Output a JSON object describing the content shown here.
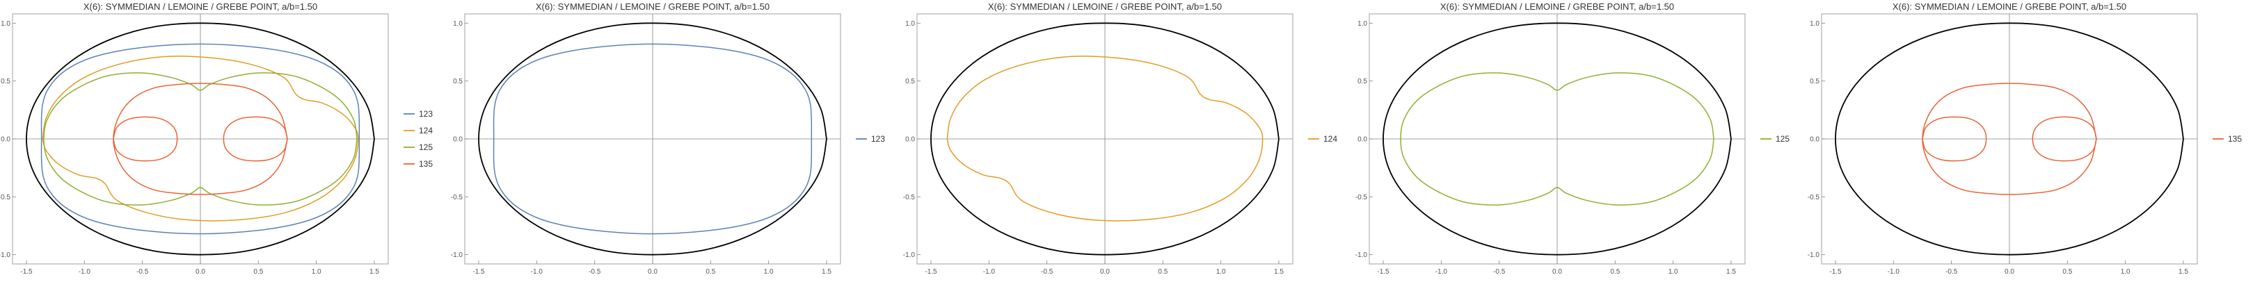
{
  "colors": {
    "123": "#5e81b5",
    "124": "#e19c24",
    "125": "#8fb032",
    "135": "#eb6235",
    "ellipse": "#000000",
    "axis": "#808080",
    "frame": "#a0a0a0"
  },
  "chart_data": [
    {
      "type": "line",
      "title": "X(6): SYMMEDIAN / LEMOINE / GREBE POINT, a/b=1.50",
      "xlim": [
        -1.62,
        1.62
      ],
      "ylim": [
        -1.08,
        1.08
      ],
      "xticks": [
        "-1.5",
        "-1.0",
        "-0.5",
        "0.0",
        "0.5",
        "1.0",
        "1.5"
      ],
      "xtick_values": [
        -1.5,
        -1.0,
        -0.5,
        0.0,
        0.5,
        1.0,
        1.5
      ],
      "yticks": [
        "-1.0",
        "-0.5",
        "0.0",
        "0.5",
        "1.0"
      ],
      "ytick_values": [
        -1.0,
        -0.5,
        0.0,
        0.5,
        1.0
      ],
      "grid": false,
      "legend": "right",
      "series": [
        {
          "name": "123",
          "color_key": "123"
        },
        {
          "name": "124",
          "color_key": "124"
        },
        {
          "name": "125",
          "color_key": "125"
        },
        {
          "name": "135",
          "color_key": "135"
        }
      ]
    },
    {
      "type": "line",
      "title": "X(6): SYMMEDIAN / LEMOINE / GREBE POINT, a/b=1.50",
      "xlim": [
        -1.62,
        1.62
      ],
      "ylim": [
        -1.08,
        1.08
      ],
      "xticks": [
        "-1.5",
        "-1.0",
        "-0.5",
        "0.0",
        "0.5",
        "1.0",
        "1.5"
      ],
      "xtick_values": [
        -1.5,
        -1.0,
        -0.5,
        0.0,
        0.5,
        1.0,
        1.5
      ],
      "yticks": [
        "-1.0",
        "-0.5",
        "0.0",
        "0.5",
        "1.0"
      ],
      "ytick_values": [
        -1.0,
        -0.5,
        0.0,
        0.5,
        1.0
      ],
      "grid": false,
      "legend": "right",
      "series": [
        {
          "name": "123",
          "color_key": "123"
        }
      ]
    },
    {
      "type": "line",
      "title": "X(6): SYMMEDIAN / LEMOINE / GREBE POINT, a/b=1.50",
      "xlim": [
        -1.62,
        1.62
      ],
      "ylim": [
        -1.08,
        1.08
      ],
      "xticks": [
        "-1.5",
        "-1.0",
        "-0.5",
        "0.0",
        "0.5",
        "1.0",
        "1.5"
      ],
      "xtick_values": [
        -1.5,
        -1.0,
        -0.5,
        0.0,
        0.5,
        1.0,
        1.5
      ],
      "yticks": [
        "-1.0",
        "-0.5",
        "0.0",
        "0.5",
        "1.0"
      ],
      "ytick_values": [
        -1.0,
        -0.5,
        0.0,
        0.5,
        1.0
      ],
      "grid": false,
      "legend": "right",
      "series": [
        {
          "name": "124",
          "color_key": "124"
        }
      ]
    },
    {
      "type": "line",
      "title": "X(6): SYMMEDIAN / LEMOINE / GREBE POINT, a/b=1.50",
      "xlim": [
        -1.62,
        1.62
      ],
      "ylim": [
        -1.08,
        1.08
      ],
      "xticks": [
        "-1.5",
        "-1.0",
        "-0.5",
        "0.0",
        "0.5",
        "1.0",
        "1.5"
      ],
      "xtick_values": [
        -1.5,
        -1.0,
        -0.5,
        0.0,
        0.5,
        1.0,
        1.5
      ],
      "yticks": [
        "-1.0",
        "-0.5",
        "0.0",
        "0.5",
        "1.0"
      ],
      "ytick_values": [
        -1.0,
        -0.5,
        0.0,
        0.5,
        1.0
      ],
      "grid": false,
      "legend": "right",
      "series": [
        {
          "name": "125",
          "color_key": "125"
        }
      ]
    },
    {
      "type": "line",
      "title": "X(6): SYMMEDIAN / LEMOINE / GREBE POINT, a/b=1.50",
      "xlim": [
        -1.62,
        1.62
      ],
      "ylim": [
        -1.08,
        1.08
      ],
      "xticks": [
        "-1.5",
        "-1.0",
        "-0.5",
        "0.0",
        "0.5",
        "1.0",
        "1.5"
      ],
      "xtick_values": [
        -1.5,
        -1.0,
        -0.5,
        0.0,
        0.5,
        1.0,
        1.5
      ],
      "yticks": [
        "-1.0",
        "-0.5",
        "0.0",
        "0.5",
        "1.0"
      ],
      "ytick_values": [
        -1.0,
        -0.5,
        0.0,
        0.5,
        1.0
      ],
      "grid": false,
      "legend": "right",
      "series": [
        {
          "name": "135",
          "color_key": "135"
        }
      ]
    }
  ],
  "curves": {
    "ellipse": [
      [
        1.5,
        0
      ],
      [
        1.45,
        0.26
      ],
      [
        1.3,
        0.5
      ],
      [
        1.06,
        0.71
      ],
      [
        0.75,
        0.87
      ],
      [
        0.39,
        0.97
      ],
      [
        0,
        1
      ],
      [
        -0.39,
        0.97
      ],
      [
        -0.75,
        0.87
      ],
      [
        -1.06,
        0.71
      ],
      [
        -1.3,
        0.5
      ],
      [
        -1.45,
        0.26
      ],
      [
        -1.5,
        0
      ],
      [
        -1.45,
        -0.26
      ],
      [
        -1.3,
        -0.5
      ],
      [
        -1.06,
        -0.71
      ],
      [
        -0.75,
        -0.87
      ],
      [
        -0.39,
        -0.97
      ],
      [
        0,
        -1
      ],
      [
        0.39,
        -0.97
      ],
      [
        0.75,
        -0.87
      ],
      [
        1.06,
        -0.71
      ],
      [
        1.3,
        -0.5
      ],
      [
        1.45,
        -0.26
      ],
      [
        1.5,
        0
      ]
    ],
    "123": [
      [
        1.37,
        0
      ],
      [
        1.36,
        0.3
      ],
      [
        1.28,
        0.48
      ],
      [
        1.12,
        0.62
      ],
      [
        0.88,
        0.72
      ],
      [
        0.5,
        0.79
      ],
      [
        0,
        0.82
      ],
      [
        -0.5,
        0.79
      ],
      [
        -0.88,
        0.72
      ],
      [
        -1.12,
        0.62
      ],
      [
        -1.28,
        0.48
      ],
      [
        -1.36,
        0.3
      ],
      [
        -1.37,
        0
      ],
      [
        -1.36,
        -0.3
      ],
      [
        -1.28,
        -0.48
      ],
      [
        -1.12,
        -0.62
      ],
      [
        -0.88,
        -0.72
      ],
      [
        -0.5,
        -0.79
      ],
      [
        0,
        -0.82
      ],
      [
        0.5,
        -0.79
      ],
      [
        0.88,
        -0.72
      ],
      [
        1.12,
        -0.62
      ],
      [
        1.28,
        -0.48
      ],
      [
        1.36,
        -0.3
      ],
      [
        1.37,
        0
      ]
    ],
    "124": [
      [
        -1.36,
        0
      ],
      [
        -1.33,
        0.18
      ],
      [
        -1.22,
        0.36
      ],
      [
        -1.02,
        0.52
      ],
      [
        -0.72,
        0.64
      ],
      [
        -0.32,
        0.71
      ],
      [
        0.1,
        0.7
      ],
      [
        0.45,
        0.64
      ],
      [
        0.72,
        0.53
      ],
      [
        0.82,
        0.39
      ],
      [
        0.9,
        0.34
      ],
      [
        1.05,
        0.31
      ],
      [
        1.22,
        0.22
      ],
      [
        1.33,
        0.1
      ],
      [
        1.36,
        0
      ],
      [
        1.33,
        -0.18
      ],
      [
        1.22,
        -0.36
      ],
      [
        1.02,
        -0.52
      ],
      [
        0.72,
        -0.64
      ],
      [
        0.32,
        -0.7
      ],
      [
        -0.1,
        -0.7
      ],
      [
        -0.45,
        -0.64
      ],
      [
        -0.72,
        -0.53
      ],
      [
        -0.82,
        -0.39
      ],
      [
        -0.9,
        -0.34
      ],
      [
        -1.05,
        -0.31
      ],
      [
        -1.22,
        -0.22
      ],
      [
        -1.33,
        -0.1
      ],
      [
        -1.36,
        0
      ]
    ],
    "125": [
      [
        1.35,
        0
      ],
      [
        1.32,
        0.17
      ],
      [
        1.2,
        0.34
      ],
      [
        1.0,
        0.47
      ],
      [
        0.78,
        0.55
      ],
      [
        0.5,
        0.57
      ],
      [
        0.25,
        0.53
      ],
      [
        0.08,
        0.47
      ],
      [
        0,
        0.42
      ],
      [
        -0.08,
        0.47
      ],
      [
        -0.25,
        0.53
      ],
      [
        -0.5,
        0.57
      ],
      [
        -0.78,
        0.55
      ],
      [
        -1.0,
        0.47
      ],
      [
        -1.2,
        0.34
      ],
      [
        -1.32,
        0.17
      ],
      [
        -1.35,
        0
      ],
      [
        -1.32,
        -0.17
      ],
      [
        -1.2,
        -0.34
      ],
      [
        -1.0,
        -0.47
      ],
      [
        -0.78,
        -0.55
      ],
      [
        -0.5,
        -0.57
      ],
      [
        -0.25,
        -0.53
      ],
      [
        -0.08,
        -0.47
      ],
      [
        0,
        -0.42
      ],
      [
        0.08,
        -0.47
      ],
      [
        0.25,
        -0.53
      ],
      [
        0.5,
        -0.57
      ],
      [
        0.78,
        -0.55
      ],
      [
        1.0,
        -0.47
      ],
      [
        1.2,
        -0.34
      ],
      [
        1.32,
        -0.17
      ],
      [
        1.35,
        0
      ]
    ],
    "135_outer": [
      [
        0.75,
        0
      ],
      [
        0.7,
        0.2
      ],
      [
        0.58,
        0.35
      ],
      [
        0.4,
        0.44
      ],
      [
        0.2,
        0.47
      ],
      [
        0,
        0.48
      ],
      [
        -0.2,
        0.47
      ],
      [
        -0.4,
        0.44
      ],
      [
        -0.58,
        0.35
      ],
      [
        -0.7,
        0.2
      ],
      [
        -0.75,
        0
      ],
      [
        -0.7,
        -0.2
      ],
      [
        -0.58,
        -0.35
      ],
      [
        -0.4,
        -0.44
      ],
      [
        -0.2,
        -0.47
      ],
      [
        0,
        -0.48
      ],
      [
        0.2,
        -0.47
      ],
      [
        0.4,
        -0.44
      ],
      [
        0.58,
        -0.35
      ],
      [
        0.7,
        -0.2
      ],
      [
        0.75,
        0
      ]
    ],
    "135_right": [
      [
        0.75,
        0
      ],
      [
        0.72,
        0.1
      ],
      [
        0.62,
        0.17
      ],
      [
        0.48,
        0.19
      ],
      [
        0.33,
        0.17
      ],
      [
        0.23,
        0.1
      ],
      [
        0.2,
        0
      ],
      [
        0.23,
        -0.1
      ],
      [
        0.33,
        -0.17
      ],
      [
        0.48,
        -0.19
      ],
      [
        0.62,
        -0.17
      ],
      [
        0.72,
        -0.1
      ],
      [
        0.75,
        0
      ]
    ],
    "135_left": [
      [
        -0.75,
        0
      ],
      [
        -0.72,
        0.1
      ],
      [
        -0.62,
        0.17
      ],
      [
        -0.48,
        0.19
      ],
      [
        -0.33,
        0.17
      ],
      [
        -0.23,
        0.1
      ],
      [
        -0.2,
        0
      ],
      [
        -0.23,
        -0.1
      ],
      [
        -0.33,
        -0.17
      ],
      [
        -0.48,
        -0.19
      ],
      [
        -0.62,
        -0.17
      ],
      [
        -0.72,
        -0.1
      ],
      [
        -0.75,
        0
      ]
    ]
  }
}
